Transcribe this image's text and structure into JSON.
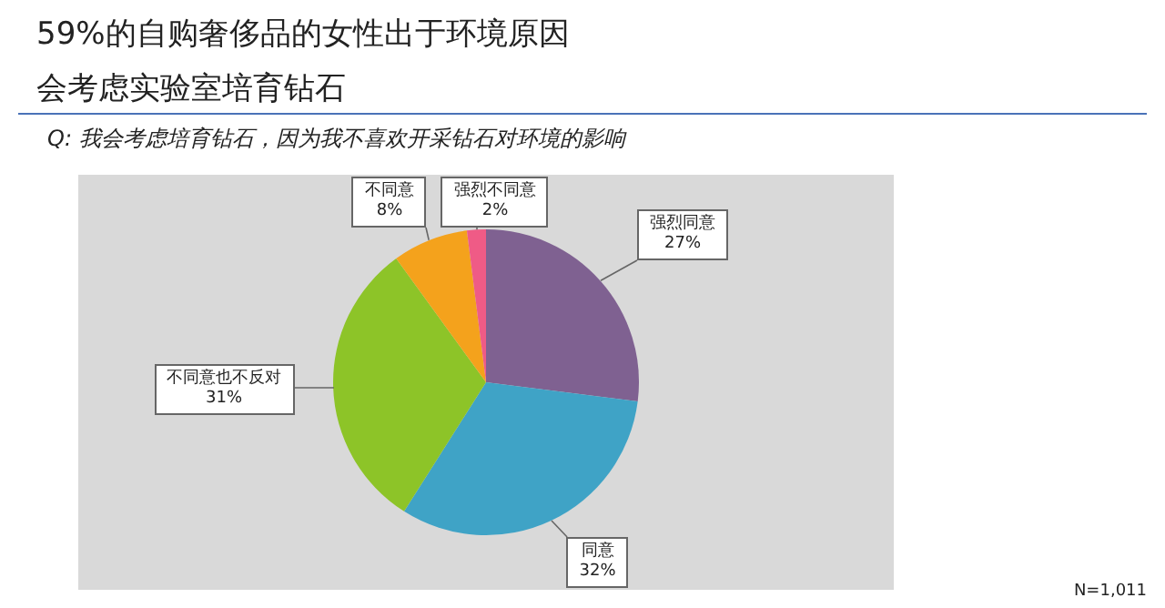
{
  "chart_data": {
    "type": "pie",
    "title": "59%的自购奢侈品的女性出于环境原因会考虑实验室培育钻石",
    "subtitle": "Q: 我会考虑培育钻石，因为我不喜欢开采钻石对环境的影响",
    "categories": [
      "强烈同意",
      "同意",
      "不同意也不反对",
      "不同意",
      "强烈不同意"
    ],
    "values": [
      27,
      32,
      31,
      8,
      2
    ],
    "value_labels": [
      "27%",
      "32%",
      "31%",
      "8%",
      "2%"
    ],
    "colors": [
      "#7f6191",
      "#3fa3c6",
      "#8dc428",
      "#f4a21c",
      "#ef5b86"
    ],
    "legend": false,
    "annotations": [
      "N=1,011"
    ]
  }
}
